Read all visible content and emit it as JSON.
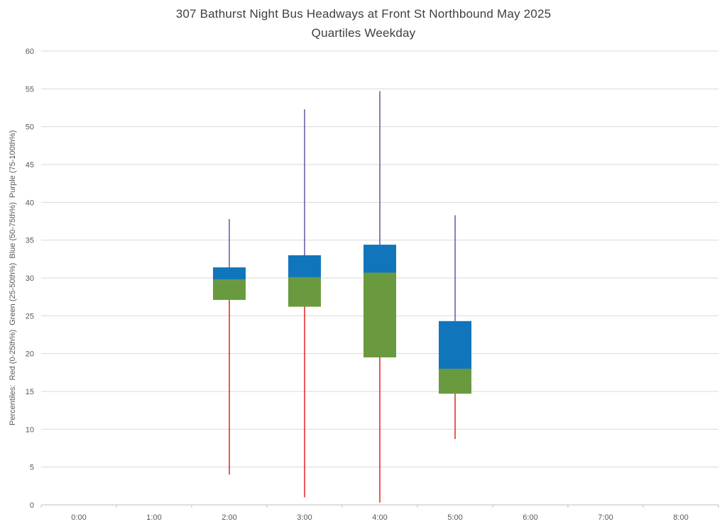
{
  "chart_data": {
    "type": "box",
    "title": "307 Bathurst Night Bus Headways at Front St Northbound May 2025",
    "subtitle": "Quartiles Weekday",
    "ylabel": "Percentiles:  Red (0-25th%)  Green (25-50th%)  Blue (50-75th%)  Purple (75-100th%)",
    "xlabel": "",
    "ylim": [
      0,
      60
    ],
    "ytick_step": 5,
    "grid": true,
    "legend": "none",
    "categories": [
      "0:00",
      "1:00",
      "2:00",
      "3:00",
      "4:00",
      "5:00",
      "6:00",
      "7:00",
      "8:00"
    ],
    "series": [
      {
        "category": "2:00",
        "min": 4.0,
        "q1": 27.1,
        "median": 29.8,
        "q3": 31.4,
        "max": 37.8
      },
      {
        "category": "3:00",
        "min": 1.0,
        "q1": 26.2,
        "median": 30.1,
        "q3": 33.0,
        "max": 52.3
      },
      {
        "category": "4:00",
        "min": 0.3,
        "q1": 19.5,
        "median": 30.7,
        "q3": 34.4,
        "max": 54.7
      },
      {
        "category": "5:00",
        "min": 8.7,
        "q1": 14.7,
        "median": 18.0,
        "q3": 24.3,
        "max": 38.3
      }
    ],
    "colors": {
      "lower_whisker": "#e02420",
      "q2_box": "#6a9a3f",
      "q3_box": "#1175bc",
      "upper_whisker": "#6355a4",
      "gridline": "#d9d9d9",
      "axis_line": "#bfbfbf",
      "tick_label": "#595959",
      "title": "#3f3f3f"
    }
  }
}
